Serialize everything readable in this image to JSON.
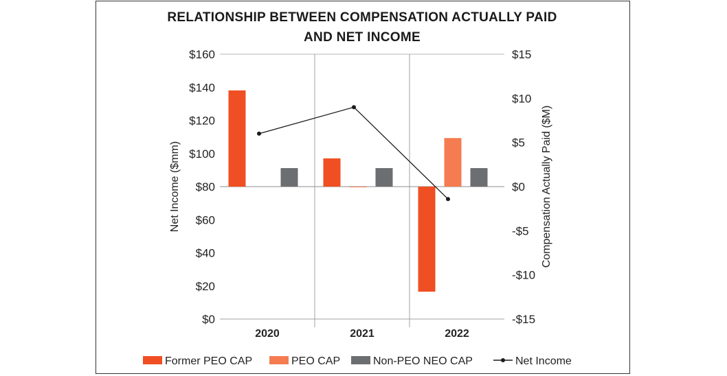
{
  "chart_data": {
    "type": "bar",
    "title": [
      "RELATIONSHIP BETWEEN COMPENSATION ACTUALLY PAID",
      "AND NET INCOME"
    ],
    "categories": [
      "2020",
      "2021",
      "2022"
    ],
    "series": [
      {
        "name": "Former PEO CAP",
        "axis": "right",
        "color": "#f04e23",
        "values": [
          10.9,
          3.2,
          -11.9
        ]
      },
      {
        "name": "PEO CAP",
        "axis": "right",
        "color": "#f47c50",
        "values": [
          null,
          0,
          5.5
        ]
      },
      {
        "name": "Non-PEO NEO CAP",
        "axis": "right",
        "color": "#6d6e71",
        "values": [
          2.1,
          2.1,
          2.1
        ]
      },
      {
        "name": "Net Income",
        "axis": "left",
        "type": "line",
        "color": "#1a1a1a",
        "values": [
          112,
          128,
          72.5
        ]
      }
    ],
    "y_left": {
      "label": "Net Income ($mm)",
      "ylim": [
        0,
        160
      ],
      "ticks": [
        0,
        20,
        40,
        60,
        80,
        100,
        120,
        140,
        160
      ],
      "tick_labels": [
        "$0",
        "$20",
        "$40",
        "$60",
        "$80",
        "$100",
        "$120",
        "$140",
        "$160"
      ]
    },
    "y_right": {
      "label": "Compensation Actually Paid ($M)",
      "ylim": [
        -15,
        15
      ],
      "ticks": [
        -15,
        -10,
        -5,
        0,
        5,
        10,
        15
      ],
      "tick_labels": [
        "-$15",
        "-$10",
        "-$5",
        "$0",
        "$5",
        "$10",
        "$15"
      ]
    },
    "legend_position": "bottom"
  }
}
